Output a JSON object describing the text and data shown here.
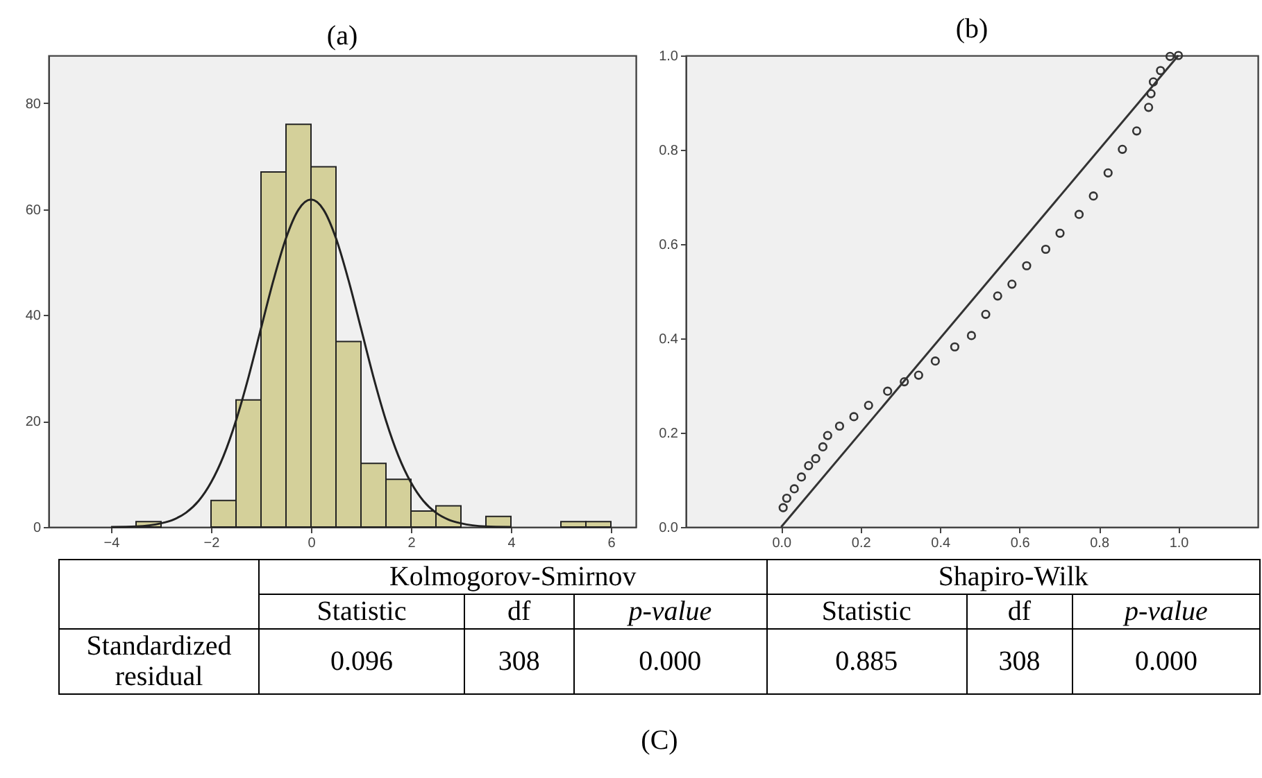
{
  "chart_data": [
    {
      "type": "histogram",
      "title": "(a)",
      "bins": [
        -3.5,
        -3,
        -2.5,
        -2,
        -1.5,
        -1,
        -0.5,
        0,
        0.5,
        1,
        1.5,
        2,
        2.5,
        3,
        3.5,
        4,
        4.5,
        5,
        5.5,
        6
      ],
      "values": [
        1,
        0,
        0,
        5,
        24,
        67,
        76,
        68,
        35,
        12,
        9,
        3,
        4,
        0,
        2,
        0,
        0,
        1,
        1
      ],
      "color": "#d4d09a",
      "series": [
        {
          "type": "line",
          "color": "#222222",
          "x": [
            -4,
            -3.5,
            -3,
            -2.75,
            -2.5,
            -2.25,
            -2,
            -1.75,
            -1.5,
            -1.25,
            -1,
            -0.75,
            -0.5,
            -0.25,
            0,
            0.25,
            0.5,
            0.75,
            1,
            1.25,
            1.5,
            1.75,
            2,
            2.25,
            2.5,
            2.75,
            3,
            3.5,
            4
          ],
          "values": [
            0,
            0.1,
            0.7,
            1.4,
            2.7,
            4.9,
            8.4,
            13.4,
            20.1,
            28.3,
            37.5,
            46.6,
            54.5,
            59.9,
            61.8,
            59.9,
            54.5,
            46.6,
            37.5,
            28.3,
            20.1,
            13.4,
            8.4,
            4.9,
            2.7,
            1.4,
            0.7,
            0.1,
            0
          ]
        }
      ],
      "xlim": [
        -5.25,
        6.5
      ],
      "xticks": [
        -4,
        -2,
        0,
        2,
        4,
        6
      ],
      "ylim": [
        0,
        89
      ],
      "yticks": [
        0,
        20,
        40,
        60,
        80
      ]
    },
    {
      "type": "scatter",
      "title": "(b)",
      "series": [
        {
          "type": "scatter",
          "marker": "circle",
          "color": "#333333",
          "x": [
            0.005,
            0.014,
            0.033,
            0.051,
            0.069,
            0.087,
            0.105,
            0.117,
            0.147,
            0.183,
            0.22,
            0.268,
            0.31,
            0.346,
            0.388,
            0.437,
            0.479,
            0.515,
            0.545,
            0.581,
            0.618,
            0.666,
            0.702,
            0.75,
            0.786,
            0.823,
            0.859,
            0.895,
            0.925,
            0.931,
            0.937,
            0.955,
            0.979,
            1.0
          ],
          "values": [
            0.041,
            0.061,
            0.081,
            0.106,
            0.13,
            0.145,
            0.17,
            0.194,
            0.214,
            0.234,
            0.258,
            0.288,
            0.308,
            0.322,
            0.352,
            0.382,
            0.406,
            0.451,
            0.49,
            0.515,
            0.554,
            0.589,
            0.623,
            0.663,
            0.702,
            0.751,
            0.801,
            0.84,
            0.89,
            0.919,
            0.944,
            0.968,
            0.998,
            1.0
          ]
        },
        {
          "type": "line",
          "marker": "none",
          "color": "#333333",
          "x": [
            0,
            1
          ],
          "values": [
            0,
            1
          ]
        }
      ],
      "xlim": [
        -0.24,
        1.2
      ],
      "xticks": [
        {
          "value": 0,
          "label": "0.0"
        },
        0.2,
        0.4,
        0.6,
        0.8,
        {
          "value": 1,
          "label": "1.0"
        }
      ],
      "ylim": [
        0,
        1
      ],
      "yticks": [
        {
          "value": 0,
          "label": "0.0"
        },
        0.2,
        0.4,
        0.6,
        0.8,
        {
          "value": 1,
          "label": "1.0"
        }
      ]
    },
    {
      "type": "other",
      "categories": [
        "Statistic",
        "df",
        "p-value",
        "Statistic",
        "df",
        "p-value"
      ],
      "y_categories": [
        "Standardized residual"
      ],
      "cell_labels": [
        [
          "0.096",
          "308",
          "0.000",
          "0.885",
          "308",
          "0.000"
        ]
      ],
      "annotations": [
        "Kolmogorov-Smirnov",
        "Shapiro-Wilk",
        "(C)"
      ]
    }
  ]
}
